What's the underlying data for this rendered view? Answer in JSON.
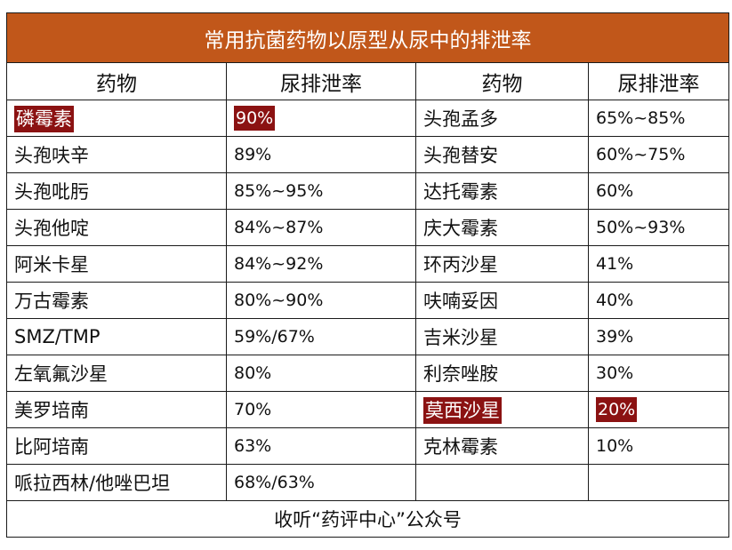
{
  "title": "常用抗菌药物以原型从尿中的排泄率",
  "headers": [
    "药物",
    "尿排泄率",
    "药物",
    "尿排泄率"
  ],
  "rows": [
    {
      "d1": "磷霉素",
      "p1": "90%",
      "d2": "头孢孟多",
      "p2": "65%~85%"
    },
    {
      "d1": "头孢呋辛",
      "p1": "89%",
      "d2": "头孢替安",
      "p2": "60%~75%"
    },
    {
      "d1": "头孢吡肟",
      "p1": "85%~95%",
      "d2": "达托霉素",
      "p2": "60%"
    },
    {
      "d1": "头孢他啶",
      "p1": "84%~87%",
      "d2": "庆大霉素",
      "p2": "50%~93%"
    },
    {
      "d1": "阿米卡星",
      "p1": "84%~92%",
      "d2": "环丙沙星",
      "p2": "41%"
    },
    {
      "d1": "万古霉素",
      "p1": "80%~90%",
      "d2": "呋喃妥因",
      "p2": "40%"
    },
    {
      "d1": "SMZ/TMP",
      "p1": "59%/67%",
      "d2": "吉米沙星",
      "p2": "39%"
    },
    {
      "d1": "左氧氟沙星",
      "p1": "80%",
      "d2": "利奈唑胺",
      "p2": "30%"
    },
    {
      "d1": "美罗培南",
      "p1": "70%",
      "d2": "莫西沙星",
      "p2": "20%"
    },
    {
      "d1": "比阿培南",
      "p1": "63%",
      "d2": "克林霉素",
      "p2": "10%"
    },
    {
      "d1": "哌拉西林/他唑巴坦",
      "p1": "68%/63%",
      "d2": "",
      "p2": ""
    }
  ],
  "footer": "收听“药评中心”公众号",
  "colors": {
    "title_bg": "#c1571a",
    "highlight_bg": "#8b1212"
  }
}
